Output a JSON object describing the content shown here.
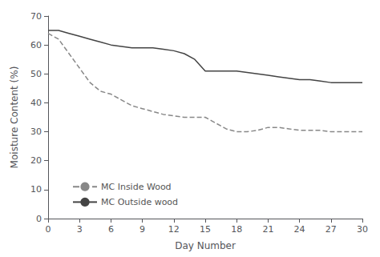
{
  "chart_data": {
    "type": "line",
    "xlabel": "Day Number",
    "ylabel": "Moisture Content (%)",
    "x": [
      0,
      1,
      2,
      3,
      4,
      5,
      6,
      7,
      8,
      9,
      10,
      11,
      12,
      13,
      14,
      15,
      16,
      17,
      18,
      19,
      20,
      21,
      22,
      23,
      24,
      25,
      26,
      27,
      28,
      29,
      30
    ],
    "series": [
      {
        "name": "MC Inside Wood",
        "color": "#888888",
        "line_style": "dashed",
        "values": [
          64,
          62,
          57,
          52,
          47,
          44,
          43,
          41,
          39,
          38,
          37,
          36,
          35.5,
          35,
          35,
          35,
          33,
          31,
          30,
          30,
          30.5,
          31.5,
          31.5,
          31,
          30.5,
          30.5,
          30.5,
          30,
          30,
          30,
          30
        ]
      },
      {
        "name": "MC Outside wood",
        "color": "#444444",
        "line_style": "solid",
        "values": [
          65,
          65,
          64,
          63,
          62,
          61,
          60,
          59.5,
          59,
          59,
          59,
          58.5,
          58,
          57,
          55,
          51,
          51,
          51,
          51,
          50.5,
          50,
          49.5,
          49,
          48.5,
          48,
          48,
          47.5,
          47,
          47,
          47,
          47
        ]
      }
    ],
    "xlim": [
      0,
      30
    ],
    "ylim": [
      0,
      70
    ],
    "xticks": [
      0,
      3,
      6,
      9,
      12,
      15,
      18,
      21,
      24,
      27,
      30
    ],
    "yticks": [
      0,
      10,
      20,
      30,
      40,
      50,
      60,
      70
    ],
    "grid": false,
    "legend": "lower left"
  }
}
